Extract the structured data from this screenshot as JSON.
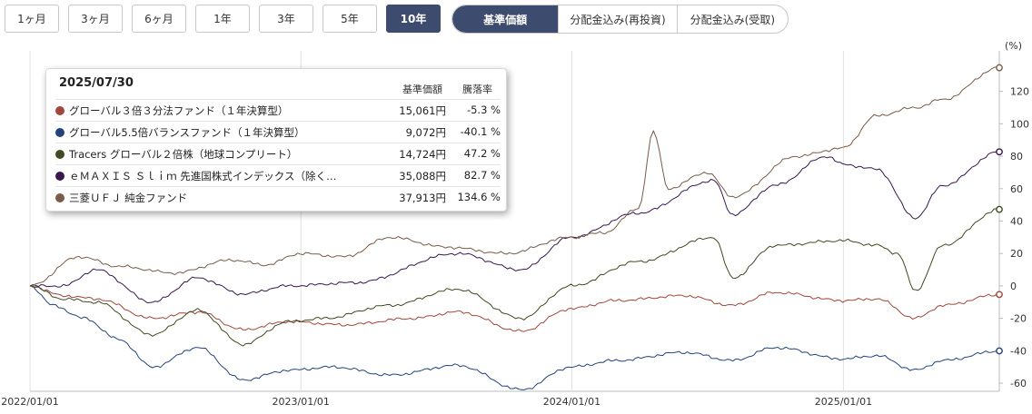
{
  "periods": [
    {
      "label": "1ヶ月",
      "active": false
    },
    {
      "label": "3ヶ月",
      "active": false
    },
    {
      "label": "6ヶ月",
      "active": false
    },
    {
      "label": "1年",
      "active": false
    },
    {
      "label": "3年",
      "active": false
    },
    {
      "label": "5年",
      "active": false
    },
    {
      "label": "10年",
      "active": true
    }
  ],
  "segments": [
    {
      "label": "基準価額",
      "active": true
    },
    {
      "label": "分配金込み(再投資)",
      "active": false
    },
    {
      "label": "分配金込み(受取)",
      "active": false
    }
  ],
  "tooltip": {
    "date": "2025/07/30",
    "col_price": "基準価額",
    "col_pct": "騰落率",
    "rows": [
      {
        "name": "グローバル３倍３分法ファンド（１年決算型）",
        "price": "15,061円",
        "pct": "-5.3 %",
        "color": "#a0463c"
      },
      {
        "name": "グローバル5.5倍バランスファンド（１年決算型）",
        "price": "9,072円",
        "pct": "-40.1 %",
        "color": "#24437a"
      },
      {
        "name": "Tracers グローバル２倍株（地球コンプリート）",
        "price": "14,724円",
        "pct": "47.2 %",
        "color": "#3d4a22"
      },
      {
        "name": "ｅＭＡＸＩＳ Ｓｌｉｍ 先進国株式インデックス（除く…",
        "price": "35,088円",
        "pct": "82.7 %",
        "color": "#3a1650"
      },
      {
        "name": "三菱ＵＦＪ 純金ファンド",
        "price": "37,913円",
        "pct": "134.6 %",
        "color": "#7a5a48"
      }
    ]
  },
  "chart_data": {
    "type": "line",
    "yunit": "(%)",
    "ylim": [
      -65,
      145
    ],
    "yticks": [
      120,
      100,
      80,
      60,
      40,
      20,
      0,
      -20,
      -40,
      -60
    ],
    "xlim": [
      "2022/01/01",
      "2025/07/30"
    ],
    "xticks": [
      "2022/01/01",
      "2023/01/01",
      "2024/01/01",
      "2025/01/01"
    ],
    "grid": "vertical",
    "series": [
      {
        "name": "グローバル３倍３分法ファンド（１年決算型）",
        "color": "#a0463c",
        "points": [
          [
            "2022/01/01",
            0
          ],
          [
            "2022/02/15",
            -6
          ],
          [
            "2022/04/01",
            -8
          ],
          [
            "2022/06/15",
            -20
          ],
          [
            "2022/08/15",
            -16
          ],
          [
            "2022/10/15",
            -27
          ],
          [
            "2022/12/15",
            -22
          ],
          [
            "2023/03/01",
            -24
          ],
          [
            "2023/06/01",
            -20
          ],
          [
            "2023/08/01",
            -16
          ],
          [
            "2023/10/25",
            -28
          ],
          [
            "2023/12/31",
            -14
          ],
          [
            "2024/03/01",
            -9
          ],
          [
            "2024/06/01",
            -6
          ],
          [
            "2024/08/05",
            -12
          ],
          [
            "2024/10/01",
            -4
          ],
          [
            "2024/12/31",
            -9
          ],
          [
            "2025/02/15",
            -8
          ],
          [
            "2025/04/08",
            -20
          ],
          [
            "2025/05/15",
            -12
          ],
          [
            "2025/07/30",
            -5.3
          ]
        ]
      },
      {
        "name": "グローバル5.5倍バランスファンド（１年決算型）",
        "color": "#24437a",
        "points": [
          [
            "2022/01/01",
            0
          ],
          [
            "2022/02/01",
            -12
          ],
          [
            "2022/03/15",
            -20
          ],
          [
            "2022/05/01",
            -33
          ],
          [
            "2022/06/15",
            -50
          ],
          [
            "2022/08/15",
            -38
          ],
          [
            "2022/10/15",
            -58
          ],
          [
            "2022/12/15",
            -52
          ],
          [
            "2023/02/15",
            -50
          ],
          [
            "2023/05/01",
            -55
          ],
          [
            "2023/07/31",
            -49
          ],
          [
            "2023/10/25",
            -64
          ],
          [
            "2023/12/31",
            -50
          ],
          [
            "2024/03/01",
            -46
          ],
          [
            "2024/06/01",
            -41
          ],
          [
            "2024/08/05",
            -46
          ],
          [
            "2024/10/01",
            -38
          ],
          [
            "2024/12/31",
            -45
          ],
          [
            "2025/02/15",
            -43
          ],
          [
            "2025/04/08",
            -52
          ],
          [
            "2025/05/15",
            -46
          ],
          [
            "2025/07/30",
            -40.1
          ]
        ]
      },
      {
        "name": "Tracers グローバル２倍株（地球コンプリート）",
        "color": "#3d4a22",
        "points": [
          [
            "2022/01/01",
            0
          ],
          [
            "2022/02/15",
            -8
          ],
          [
            "2022/03/31",
            -10
          ],
          [
            "2022/06/15",
            -30
          ],
          [
            "2022/08/15",
            -15
          ],
          [
            "2022/10/15",
            -36
          ],
          [
            "2022/12/15",
            -22
          ],
          [
            "2023/02/01",
            -20
          ],
          [
            "2023/05/01",
            -12
          ],
          [
            "2023/07/31",
            -2
          ],
          [
            "2023/10/25",
            -20
          ],
          [
            "2023/12/31",
            0
          ],
          [
            "2024/03/31",
            15
          ],
          [
            "2024/07/10",
            30
          ],
          [
            "2024/08/05",
            5
          ],
          [
            "2024/10/01",
            25
          ],
          [
            "2024/12/31",
            28
          ],
          [
            "2025/02/15",
            25
          ],
          [
            "2025/03/15",
            20
          ],
          [
            "2025/04/08",
            -3
          ],
          [
            "2025/05/15",
            25
          ],
          [
            "2025/07/30",
            47.2
          ]
        ]
      },
      {
        "name": "ｅＭＡＸＩＳ Ｓｌｉｍ 先進国株式インデックス（除く…",
        "color": "#3a1650",
        "points": [
          [
            "2022/01/01",
            0
          ],
          [
            "2022/02/15",
            0
          ],
          [
            "2022/03/31",
            10
          ],
          [
            "2022/06/15",
            -10
          ],
          [
            "2022/08/15",
            5
          ],
          [
            "2022/10/15",
            -5
          ],
          [
            "2022/12/15",
            0
          ],
          [
            "2023/03/15",
            2
          ],
          [
            "2023/07/31",
            20
          ],
          [
            "2023/10/25",
            10
          ],
          [
            "2023/12/31",
            30
          ],
          [
            "2024/03/31",
            45
          ],
          [
            "2024/07/10",
            65
          ],
          [
            "2024/08/05",
            44
          ],
          [
            "2024/10/01",
            62
          ],
          [
            "2024/12/10",
            80
          ],
          [
            "2024/12/31",
            75
          ],
          [
            "2025/02/15",
            72
          ],
          [
            "2025/04/08",
            42
          ],
          [
            "2025/05/15",
            62
          ],
          [
            "2025/07/30",
            82.7
          ]
        ]
      },
      {
        "name": "三菱ＵＦＪ 純金ファンド",
        "color": "#7a5a48",
        "points": [
          [
            "2022/01/01",
            0
          ],
          [
            "2022/03/08",
            18
          ],
          [
            "2022/05/01",
            12
          ],
          [
            "2022/07/15",
            8
          ],
          [
            "2022/09/30",
            16
          ],
          [
            "2022/11/15",
            13
          ],
          [
            "2022/12/31",
            20
          ],
          [
            "2023/03/01",
            18
          ],
          [
            "2023/05/01",
            30
          ],
          [
            "2023/07/15",
            24
          ],
          [
            "2023/10/05",
            20
          ],
          [
            "2023/12/31",
            30
          ],
          [
            "2024/02/15",
            33
          ],
          [
            "2024/03/31",
            48
          ],
          [
            "2024/04/20",
            95
          ],
          [
            "2024/05/10",
            60
          ],
          [
            "2024/07/01",
            70
          ],
          [
            "2024/08/05",
            55
          ],
          [
            "2024/10/30",
            80
          ],
          [
            "2024/12/31",
            85
          ],
          [
            "2025/02/15",
            105
          ],
          [
            "2025/04/08",
            110
          ],
          [
            "2025/05/15",
            115
          ],
          [
            "2025/07/30",
            134.6
          ]
        ]
      }
    ]
  }
}
